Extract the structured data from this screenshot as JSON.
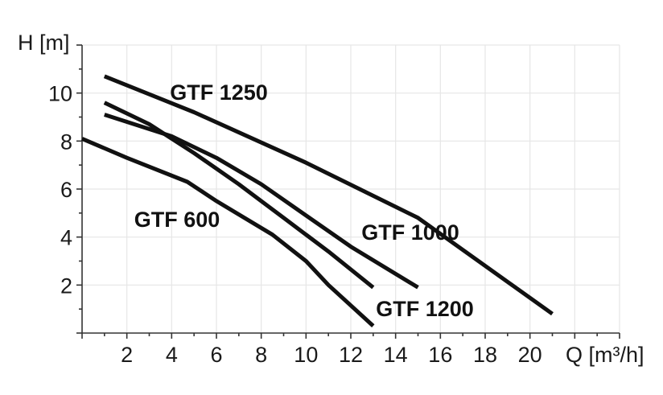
{
  "chart_data": {
    "type": "line",
    "xlabel": "Q [m³/h]",
    "ylabel": "H [m]",
    "xlim": [
      0,
      24
    ],
    "ylim": [
      0,
      12
    ],
    "x_ticks": [
      2,
      4,
      6,
      8,
      10,
      12,
      14,
      16,
      18,
      20
    ],
    "y_ticks": [
      2,
      4,
      6,
      8,
      10
    ],
    "grid": true,
    "line_color": "#111111",
    "series": [
      {
        "name": "GTF 1250",
        "x": [
          1,
          5,
          10,
          15,
          21
        ],
        "y": [
          10.7,
          9.2,
          7.1,
          4.8,
          0.8
        ]
      },
      {
        "name": "GTF 1000",
        "x": [
          1,
          4,
          6,
          8,
          10,
          12,
          15
        ],
        "y": [
          9.1,
          8.2,
          7.3,
          6.2,
          4.9,
          3.6,
          1.9
        ]
      },
      {
        "name": "GTF 1200",
        "x": [
          1,
          3,
          5,
          7,
          9,
          11,
          13
        ],
        "y": [
          9.6,
          8.7,
          7.5,
          6.2,
          4.8,
          3.4,
          1.9
        ]
      },
      {
        "name": "GTF 600",
        "x": [
          0,
          2,
          4.7,
          6,
          8.5,
          10,
          11,
          13
        ],
        "y": [
          8.1,
          7.3,
          6.3,
          5.5,
          4.1,
          3.0,
          2.0,
          0.3
        ]
      }
    ]
  }
}
